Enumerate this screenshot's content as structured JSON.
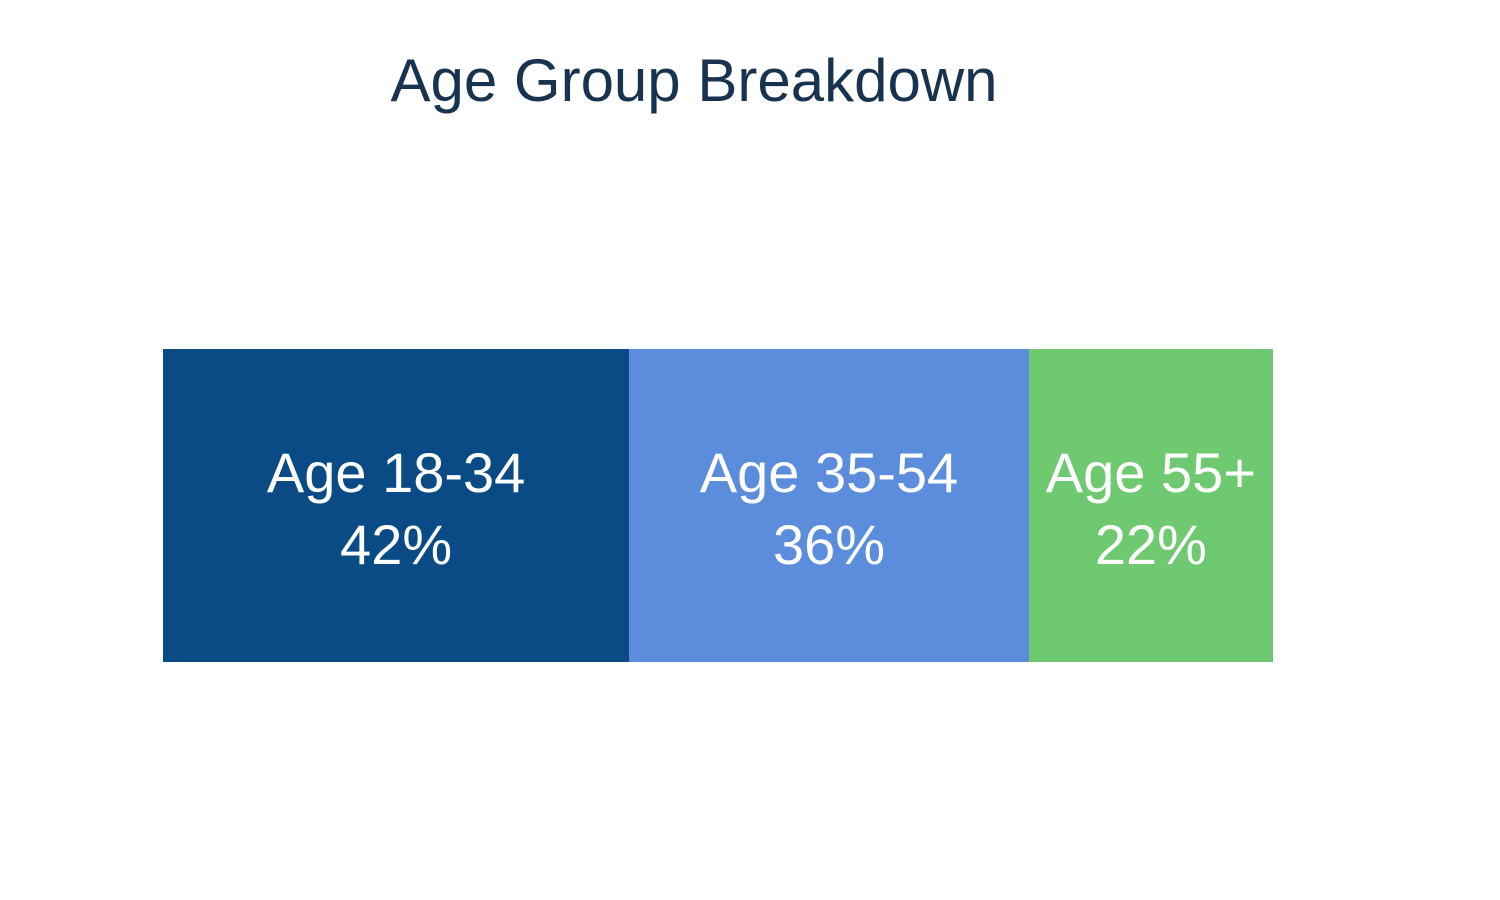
{
  "figure": {
    "background": "#ffffff"
  },
  "chart_data": {
    "type": "bar",
    "subtype": "single-stacked-horizontal-bar",
    "title": "Age Group Breakdown",
    "title_color": "#17334F",
    "categories": [
      "Age 18-34",
      "Age 35-54",
      "Age 55+"
    ],
    "values": [
      42,
      36,
      22
    ],
    "unit": "%",
    "total": 100,
    "grid": false,
    "legend": false,
    "axes_visible": false,
    "label_text_color": "#ffffff",
    "segments": [
      {
        "label": "Age 18-34",
        "value": 42,
        "value_label": "42%",
        "color": "#0A4B86"
      },
      {
        "label": "Age 35-54",
        "value": 36,
        "value_label": "36%",
        "color": "#5C8DDC"
      },
      {
        "label": "Age 55+",
        "value": 22,
        "value_label": "22%",
        "color": "#6FC970"
      }
    ]
  }
}
